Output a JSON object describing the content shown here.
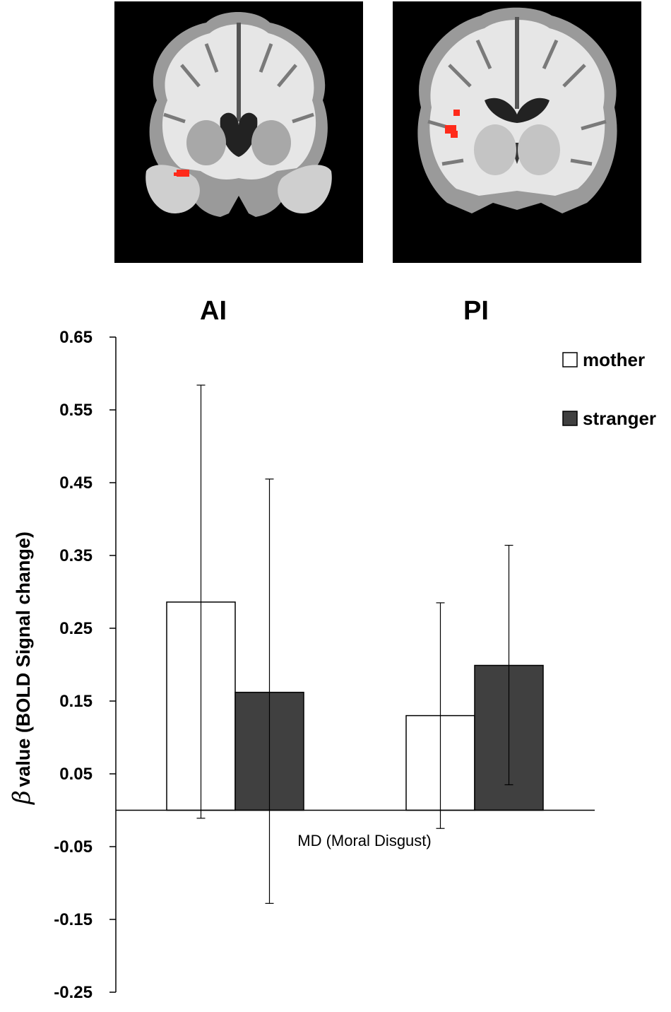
{
  "chart_data": {
    "type": "bar",
    "groups": [
      "AI",
      "PI"
    ],
    "xlabel": "MD (Moral Disgust)",
    "ylabel_symbol": "β",
    "ylabel": "value (BOLD Signal change)",
    "ylim": [
      -0.25,
      0.65
    ],
    "yticks": [
      0.65,
      0.55,
      0.45,
      0.35,
      0.25,
      0.15,
      0.05,
      -0.05,
      -0.15,
      -0.25
    ],
    "ytick_labels": [
      "0.65",
      "0.55",
      "0.45",
      "0.35",
      "0.25",
      "0.15",
      "0.05",
      "-0.05",
      "-0.15",
      "-0.25"
    ],
    "legend_position": "top-right",
    "series": [
      {
        "name": "mother",
        "color": "#ffffff",
        "values": [
          0.286,
          0.13
        ],
        "error_low": [
          -0.011,
          -0.025
        ],
        "error_high": [
          0.584,
          0.285
        ]
      },
      {
        "name": "stranger",
        "color": "#404040",
        "values": [
          0.162,
          0.199
        ],
        "error_low": [
          -0.128,
          0.035
        ],
        "error_high": [
          0.455,
          0.364
        ]
      }
    ]
  },
  "brain_images": [
    {
      "region": "AI",
      "view": "coronal-section",
      "highlight_color": "#ff2a1a"
    },
    {
      "region": "PI",
      "view": "coronal-section",
      "highlight_color": "#ff2a1a"
    }
  ]
}
